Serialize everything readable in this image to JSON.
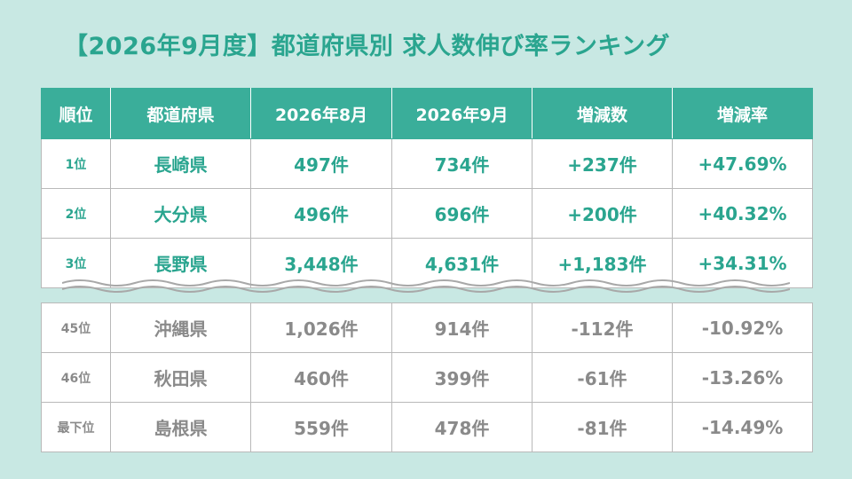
{
  "title": "【2026年9月度】都道府県別 求人数伸び率ランキング",
  "headers": [
    "順位",
    "都道府県",
    "2026年8月",
    "2026年9月",
    "増減数",
    "増減率"
  ],
  "top_rows": [
    {
      "rank": "1位",
      "pref": "長崎県",
      "aug": "497件",
      "sep": "734件",
      "diff": "+237件",
      "rate": "+47.69%"
    },
    {
      "rank": "2位",
      "pref": "大分県",
      "aug": "496件",
      "sep": "696件",
      "diff": "+200件",
      "rate": "+40.32%"
    },
    {
      "rank": "3位",
      "pref": "長野県",
      "aug": "3,448件",
      "sep": "4,631件",
      "diff": "+1,183件",
      "rate": "+34.31%"
    }
  ],
  "bottom_rows": [
    {
      "rank": "45位",
      "pref": "沖縄県",
      "aug": "1,026件",
      "sep": "914件",
      "diff": "-112件",
      "rate": "-10.92%"
    },
    {
      "rank": "46位",
      "pref": "秋田県",
      "aug": "460件",
      "sep": "399件",
      "diff": "-61件",
      "rate": "-13.26%"
    },
    {
      "rank": "最下位",
      "pref": "島根県",
      "aug": "559件",
      "sep": "478件",
      "diff": "-81件",
      "rate": "-14.49%"
    }
  ]
}
